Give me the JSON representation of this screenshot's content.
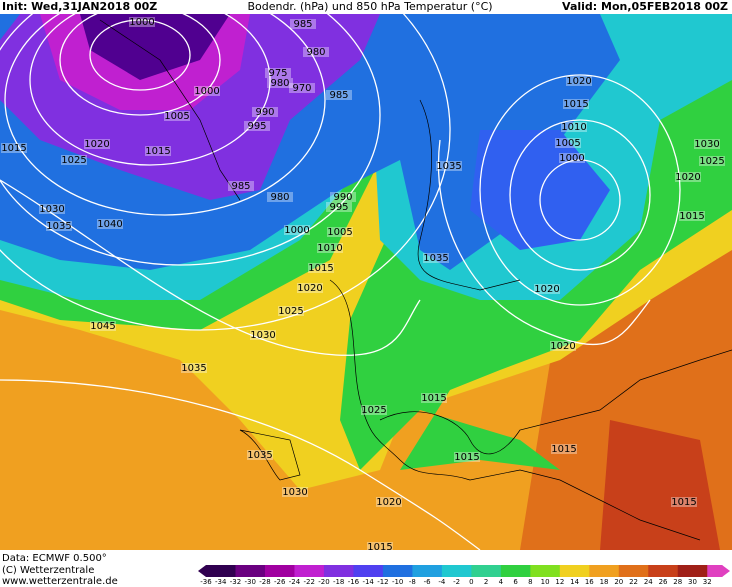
{
  "header": {
    "init": "Init: Wed,31JAN2018 00Z",
    "title": "Bodendr. (hPa) und 850 hPa Temperatur (°C)",
    "valid": "Valid: Mon,05FEB2018 00Z"
  },
  "footer": {
    "data": "Data: ECMWF   0.500°",
    "copyright": "(C) Wetterzentrale",
    "url": "www.wetterzentrale.de"
  },
  "colorbar": {
    "ticks": [
      -36,
      -34,
      -32,
      -30,
      -28,
      -26,
      -24,
      -22,
      -20,
      -18,
      -16,
      -14,
      -12,
      -10,
      -8,
      -6,
      -4,
      -2,
      0,
      2,
      4,
      6,
      8,
      10,
      12,
      14,
      16,
      18,
      20,
      22,
      24,
      26,
      28,
      30,
      32
    ]
  },
  "isobar_labels": [
    "1000",
    "985",
    "980",
    "975",
    "980",
    "970",
    "985",
    "1000",
    "1005",
    "995",
    "990",
    "1015",
    "1020",
    "1015",
    "1025",
    "985",
    "980",
    "990",
    "995",
    "1000",
    "1005",
    "1010",
    "1015",
    "1020",
    "1025",
    "1030",
    "1035",
    "1045",
    "1040",
    "1030",
    "1035",
    "1035",
    "1030",
    "1025",
    "1015",
    "1015",
    "1020",
    "1015",
    "1035",
    "1035",
    "1020",
    "1020",
    "1020",
    "1015",
    "1010",
    "1005",
    "1000",
    "1030",
    "1025",
    "1020",
    "1015",
    "1015",
    "1015"
  ]
}
